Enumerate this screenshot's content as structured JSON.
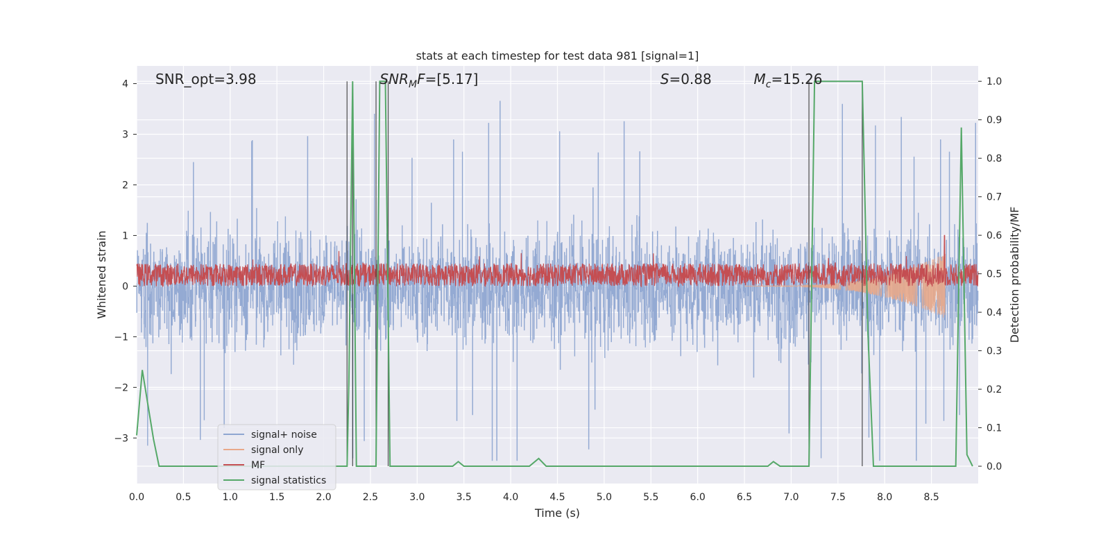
{
  "chart_data": {
    "type": "line",
    "title": "stats at each timestep for test data 981 [signal=1]",
    "xlabel": "Time (s)",
    "ylabel": "Whitened strain",
    "y2label": "Detection probability/MF",
    "xlim": [
      0.0,
      9.0
    ],
    "ylim": [
      -3.9,
      4.35
    ],
    "y2lim": [
      -0.045,
      1.04
    ],
    "xticks": [
      "0.0",
      "0.5",
      "1.0",
      "1.5",
      "2.0",
      "2.5",
      "3.0",
      "3.5",
      "4.0",
      "4.5",
      "5.0",
      "5.5",
      "6.0",
      "6.5",
      "7.0",
      "7.5",
      "8.0",
      "8.5"
    ],
    "yticks": [
      "4",
      "3",
      "2",
      "1",
      "0",
      "−1",
      "−2",
      "−3"
    ],
    "y2ticks": [
      "1.0",
      "0.9",
      "0.8",
      "0.7",
      "0.6",
      "0.5",
      "0.4",
      "0.3",
      "0.2",
      "0.1",
      "0.0"
    ],
    "grid": true,
    "legend_position": "lower-left",
    "annotations": [
      {
        "text": "SNR_opt=3.98",
        "x": 0.2
      },
      {
        "text": "SNR",
        "sub": "M",
        "rest": "F=[5.17]",
        "x": 2.6
      },
      {
        "text": "S",
        "rest": "=0.88",
        "x": 5.6
      },
      {
        "text": "M",
        "sub": "c",
        "rest": "=15.26",
        "x": 6.6
      }
    ],
    "vertical_lines_x": [
      2.25,
      2.31,
      2.56,
      2.69,
      7.19,
      7.76
    ],
    "series": [
      {
        "name": "signal+ noise",
        "color": "#8fa6d1",
        "summary": {
          "center": 0.0,
          "typical_abs": 1.3,
          "peak_max": 4.0,
          "peak_min": -3.4
        }
      },
      {
        "name": "signal only",
        "color": "#e8a889",
        "chirp_start": 6.5,
        "chirp_end": 8.65,
        "max_amp": 0.65
      },
      {
        "name": "MF",
        "color": "#c44e52",
        "center": 0.2,
        "spread": 0.35
      },
      {
        "name": "signal statistics",
        "color": "#55a868",
        "axis": "right",
        "x": [
          0.0,
          0.06,
          0.12,
          0.18,
          0.24,
          0.6,
          1.0,
          1.5,
          2.0,
          2.25,
          2.27,
          2.31,
          2.35,
          2.4,
          2.56,
          2.6,
          2.66,
          2.71,
          2.75,
          3.0,
          3.38,
          3.44,
          3.5,
          4.0,
          4.2,
          4.3,
          4.38,
          4.5,
          5.0,
          6.0,
          6.75,
          6.81,
          6.88,
          7.0,
          7.19,
          7.25,
          7.5,
          7.76,
          7.82,
          7.88,
          8.0,
          8.5,
          8.76,
          8.82,
          8.88,
          8.94
        ],
        "y": [
          0.08,
          0.25,
          0.16,
          0.07,
          0.0,
          0.0,
          0.0,
          0.0,
          0.0,
          0.0,
          0.22,
          1.0,
          0.0,
          0.0,
          0.0,
          1.0,
          1.0,
          0.0,
          0.0,
          0.0,
          0.0,
          0.012,
          0.0,
          0.0,
          0.0,
          0.02,
          0.0,
          0.0,
          0.0,
          0.0,
          0.0,
          0.012,
          0.0,
          0.0,
          0.0,
          1.0,
          1.0,
          1.0,
          0.35,
          0.0,
          0.0,
          0.0,
          0.0,
          0.88,
          0.03,
          0.0
        ]
      }
    ]
  }
}
